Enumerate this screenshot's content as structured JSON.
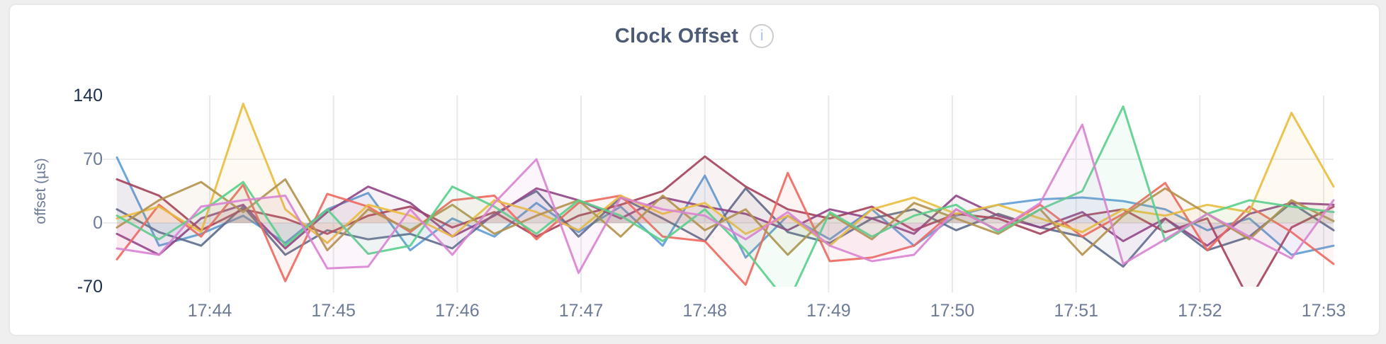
{
  "window": {
    "background_color": "#efeff0"
  },
  "card": {
    "background_color": "#ffffff",
    "border_color": "#e8e8ea"
  },
  "header": {
    "title": "Clock Offset",
    "info_icon_glyph": "i"
  },
  "chart_data": {
    "type": "line",
    "title": "Clock Offset",
    "xlabel": "",
    "ylabel": "offset (µs)",
    "legend": "none",
    "grid": true,
    "xlim_minutes_after_17h": [
      43.25,
      53.08
    ],
    "ylim": [
      -70,
      140
    ],
    "ygrid_values": [
      70,
      0
    ],
    "yticks": [
      {
        "value": 140,
        "label": "140",
        "emphasis": true
      },
      {
        "value": 70,
        "label": "70",
        "emphasis": false
      },
      {
        "value": 0,
        "label": "0",
        "emphasis": false
      },
      {
        "value": -70,
        "label": "-70",
        "emphasis": true
      }
    ],
    "xticks": [
      {
        "minute": 44,
        "label": "17:44"
      },
      {
        "minute": 45,
        "label": "17:45"
      },
      {
        "minute": 46,
        "label": "17:46"
      },
      {
        "minute": 47,
        "label": "17:47"
      },
      {
        "minute": 48,
        "label": "17:48"
      },
      {
        "minute": 49,
        "label": "17:49"
      },
      {
        "minute": 50,
        "label": "17:50"
      },
      {
        "minute": 51,
        "label": "17:51"
      },
      {
        "minute": 52,
        "label": "17:52"
      },
      {
        "minute": 53,
        "label": "17:53"
      }
    ],
    "x_minutes_after_17h": [
      43.25,
      43.59,
      43.93,
      44.27,
      44.61,
      44.95,
      45.28,
      45.62,
      45.96,
      46.3,
      46.64,
      46.98,
      47.32,
      47.66,
      48.0,
      48.33,
      48.67,
      49.01,
      49.35,
      49.69,
      50.03,
      50.37,
      50.71,
      51.05,
      51.38,
      51.72,
      52.06,
      52.4,
      52.74,
      53.08
    ],
    "line_style": {
      "stroke_width": 3,
      "line_opacity": 0.9,
      "fill_to_zero_opacity": 0.07
    },
    "series": [
      {
        "name": "series-blue",
        "color": "#5E9CD3",
        "values": [
          72,
          -25,
          -12,
          8,
          -22,
          15,
          33,
          -30,
          5,
          -15,
          22,
          -10,
          18,
          -25,
          52,
          -38,
          8,
          -18,
          15,
          -25,
          8,
          20,
          26,
          28,
          24,
          15,
          -8,
          5,
          -35,
          -25
        ]
      },
      {
        "name": "series-slate",
        "color": "#5D6C8C",
        "values": [
          15,
          -10,
          -25,
          18,
          -35,
          -8,
          -18,
          -12,
          -28,
          10,
          35,
          -15,
          28,
          5,
          -20,
          38,
          -10,
          -22,
          5,
          15,
          -8,
          10,
          -5,
          -15,
          -48,
          5,
          -30,
          -15,
          22,
          -8
        ]
      },
      {
        "name": "series-maroon",
        "color": "#A4415B",
        "values": [
          48,
          30,
          -8,
          15,
          5,
          -12,
          8,
          18,
          -5,
          12,
          -15,
          8,
          20,
          35,
          73,
          40,
          15,
          5,
          18,
          -8,
          10,
          5,
          -12,
          8,
          15,
          -10,
          5,
          -85,
          -5,
          18
        ]
      },
      {
        "name": "series-plum",
        "color": "#8E4585",
        "values": [
          -12,
          -35,
          5,
          20,
          -28,
          12,
          40,
          22,
          -15,
          8,
          38,
          25,
          5,
          28,
          18,
          10,
          -8,
          15,
          5,
          -12,
          30,
          8,
          -5,
          12,
          -20,
          5,
          -25,
          10,
          22,
          20
        ]
      },
      {
        "name": "series-salmon",
        "color": "#EC685E",
        "values": [
          -40,
          20,
          -15,
          42,
          -64,
          32,
          18,
          -10,
          25,
          30,
          -18,
          22,
          30,
          -15,
          -20,
          -68,
          55,
          -42,
          -38,
          -25,
          15,
          -8,
          20,
          -15,
          10,
          44,
          -30,
          18,
          -10,
          -45
        ]
      },
      {
        "name": "series-amber",
        "color": "#EABD3E",
        "values": [
          5,
          18,
          -10,
          131,
          15,
          -22,
          20,
          8,
          -15,
          25,
          12,
          -8,
          30,
          10,
          22,
          -12,
          8,
          -25,
          15,
          28,
          10,
          20,
          5,
          -10,
          15,
          8,
          20,
          12,
          121,
          40
        ]
      },
      {
        "name": "series-khaki",
        "color": "#B2914C",
        "values": [
          -5,
          25,
          45,
          12,
          48,
          -30,
          15,
          -8,
          20,
          -12,
          8,
          25,
          -15,
          30,
          -8,
          15,
          -35,
          10,
          -18,
          22,
          5,
          -12,
          15,
          -35,
          8,
          38,
          10,
          -18,
          25,
          2
        ]
      },
      {
        "name": "series-green",
        "color": "#5BCE8C",
        "values": [
          8,
          -18,
          12,
          45,
          -25,
          15,
          -34,
          -25,
          40,
          18,
          -12,
          25,
          8,
          -20,
          15,
          -30,
          -88,
          12,
          -15,
          8,
          20,
          -10,
          15,
          35,
          128,
          -20,
          10,
          25,
          18,
          12
        ]
      },
      {
        "name": "series-orchid",
        "color": "#D983D1",
        "values": [
          -28,
          -35,
          18,
          25,
          30,
          -50,
          -48,
          15,
          -35,
          22,
          70,
          -55,
          28,
          15,
          8,
          -18,
          12,
          -25,
          -42,
          -35,
          15,
          -8,
          22,
          108,
          -45,
          -18,
          10,
          -15,
          -39,
          25
        ]
      }
    ]
  }
}
